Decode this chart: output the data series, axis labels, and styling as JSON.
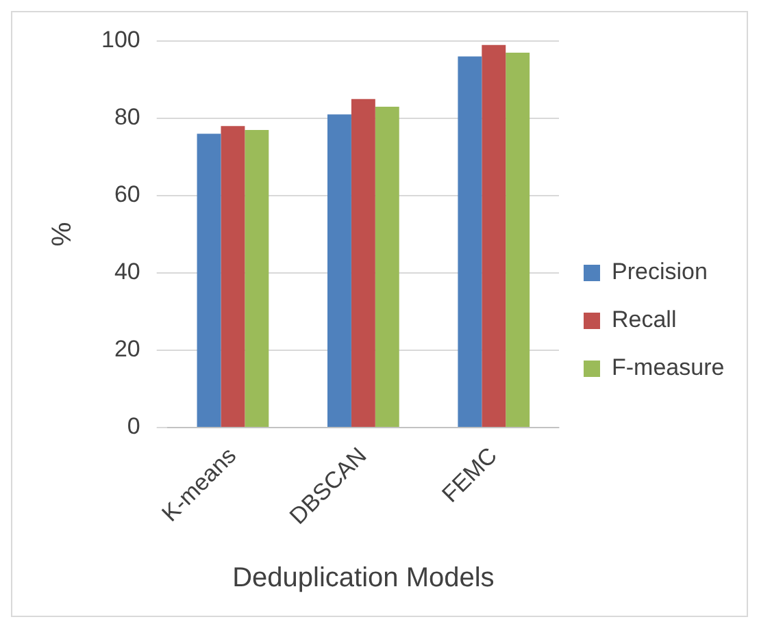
{
  "chart_data": {
    "type": "bar",
    "xlabel": "Deduplication Models",
    "ylabel": "%",
    "categories": [
      "K-means",
      "DBSCAN",
      "FEMC"
    ],
    "series": [
      {
        "name": "Precision",
        "color": "#4f81bd",
        "values": [
          76,
          81,
          96
        ]
      },
      {
        "name": "Recall",
        "color": "#c0504d",
        "values": [
          78,
          85,
          99
        ]
      },
      {
        "name": "F-measure",
        "color": "#9bbb59",
        "values": [
          77,
          83,
          97
        ]
      }
    ],
    "ylim": [
      0,
      100
    ],
    "yticks": [
      0,
      20,
      40,
      60,
      80,
      100
    ],
    "grid": "y",
    "legend": "right"
  }
}
